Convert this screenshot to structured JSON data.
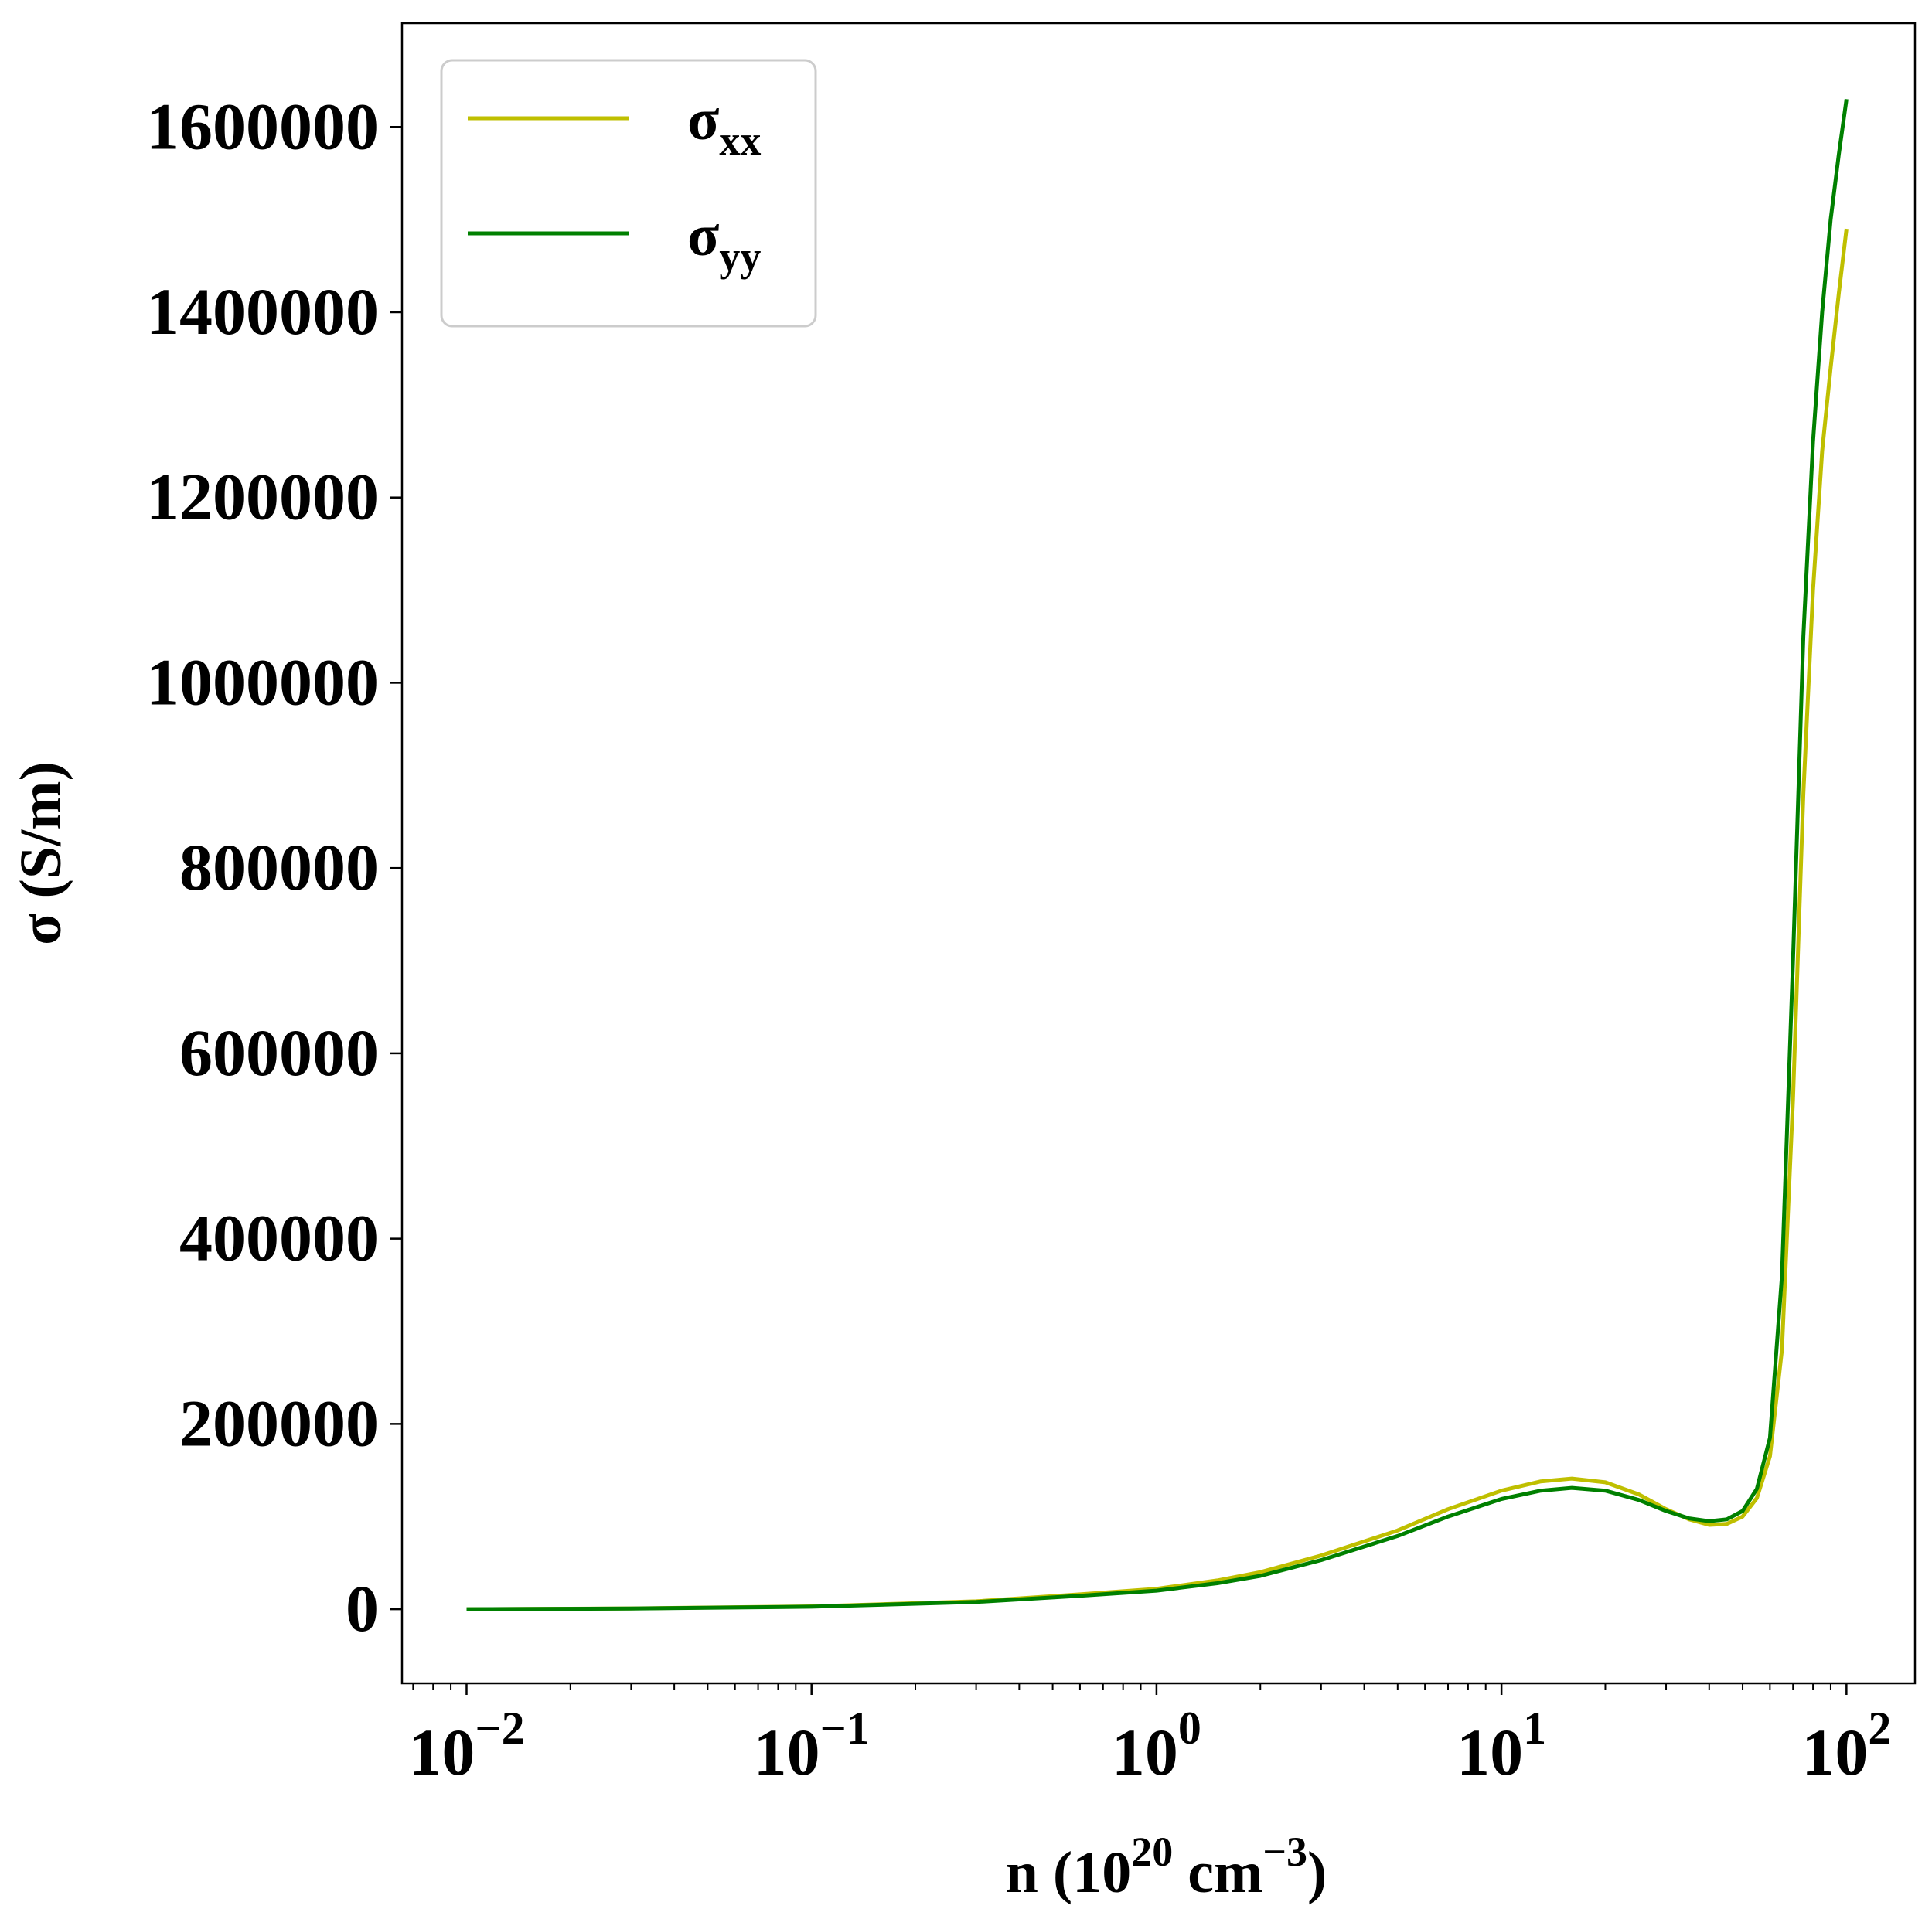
{
  "chart_data": {
    "type": "line",
    "xscale": "log",
    "xlabel": {
      "base": "n (10",
      "exp1": "20",
      "mid": " cm",
      "exp2": "−3",
      "end": ")"
    },
    "ylabel": "σ (S/m)",
    "xlim": [
      0.0065,
      158
    ],
    "ylim": [
      -80000,
      1712000
    ],
    "x_ticks": [
      {
        "value": 0.01,
        "mantissa": "10",
        "exponent": "−2"
      },
      {
        "value": 0.1,
        "mantissa": "10",
        "exponent": "−1"
      },
      {
        "value": 1,
        "mantissa": "10",
        "exponent": "0"
      },
      {
        "value": 10,
        "mantissa": "10",
        "exponent": "1"
      },
      {
        "value": 100,
        "mantissa": "10",
        "exponent": "2"
      }
    ],
    "y_ticks": [
      {
        "value": 0,
        "label": "0"
      },
      {
        "value": 200000,
        "label": "200000"
      },
      {
        "value": 400000,
        "label": "400000"
      },
      {
        "value": 600000,
        "label": "600000"
      },
      {
        "value": 800000,
        "label": "800000"
      },
      {
        "value": 1000000,
        "label": "1000000"
      },
      {
        "value": 1200000,
        "label": "1200000"
      },
      {
        "value": 1400000,
        "label": "1400000"
      },
      {
        "value": 1600000,
        "label": "1600000"
      }
    ],
    "grid": false,
    "legend_position": "top-left",
    "series": [
      {
        "name": "σ",
        "subscript": "xx",
        "color": "#bfbf00",
        "points": [
          [
            0.01,
            0
          ],
          [
            0.03,
            800
          ],
          [
            0.1,
            3000
          ],
          [
            0.3,
            8500
          ],
          [
            0.6,
            16000
          ],
          [
            1.0,
            22000
          ],
          [
            1.5,
            31000
          ],
          [
            2.0,
            40000
          ],
          [
            3.0,
            58000
          ],
          [
            5.0,
            85000
          ],
          [
            7.0,
            108000
          ],
          [
            10.0,
            128000
          ],
          [
            13.0,
            138000
          ],
          [
            16.0,
            141000
          ],
          [
            20.0,
            137000
          ],
          [
            25.0,
            124000
          ],
          [
            30.0,
            108000
          ],
          [
            35.0,
            97000
          ],
          [
            40.0,
            91000
          ],
          [
            45.0,
            92000
          ],
          [
            50.0,
            100000
          ],
          [
            55.0,
            120000
          ],
          [
            60.0,
            165000
          ],
          [
            65.0,
            280000
          ],
          [
            70.0,
            550000
          ],
          [
            75.0,
            880000
          ],
          [
            80.0,
            1100000
          ],
          [
            85.0,
            1250000
          ],
          [
            90.0,
            1340000
          ],
          [
            95.0,
            1420000
          ],
          [
            100.0,
            1490000
          ]
        ]
      },
      {
        "name": "σ",
        "subscript": "yy",
        "color": "#008000",
        "points": [
          [
            0.01,
            0
          ],
          [
            0.03,
            700
          ],
          [
            0.1,
            2700
          ],
          [
            0.3,
            7800
          ],
          [
            0.6,
            14500
          ],
          [
            1.0,
            20000
          ],
          [
            1.5,
            28000
          ],
          [
            2.0,
            36000
          ],
          [
            3.0,
            53000
          ],
          [
            5.0,
            79000
          ],
          [
            7.0,
            100000
          ],
          [
            10.0,
            119000
          ],
          [
            13.0,
            128000
          ],
          [
            16.0,
            131000
          ],
          [
            20.0,
            128000
          ],
          [
            25.0,
            118000
          ],
          [
            30.0,
            106000
          ],
          [
            35.0,
            98000
          ],
          [
            40.0,
            95000
          ],
          [
            45.0,
            97000
          ],
          [
            50.0,
            106000
          ],
          [
            55.0,
            130000
          ],
          [
            60.0,
            185000
          ],
          [
            65.0,
            360000
          ],
          [
            70.0,
            700000
          ],
          [
            75.0,
            1050000
          ],
          [
            80.0,
            1260000
          ],
          [
            85.0,
            1400000
          ],
          [
            90.0,
            1500000
          ],
          [
            95.0,
            1570000
          ],
          [
            100.0,
            1630000
          ]
        ]
      }
    ]
  }
}
